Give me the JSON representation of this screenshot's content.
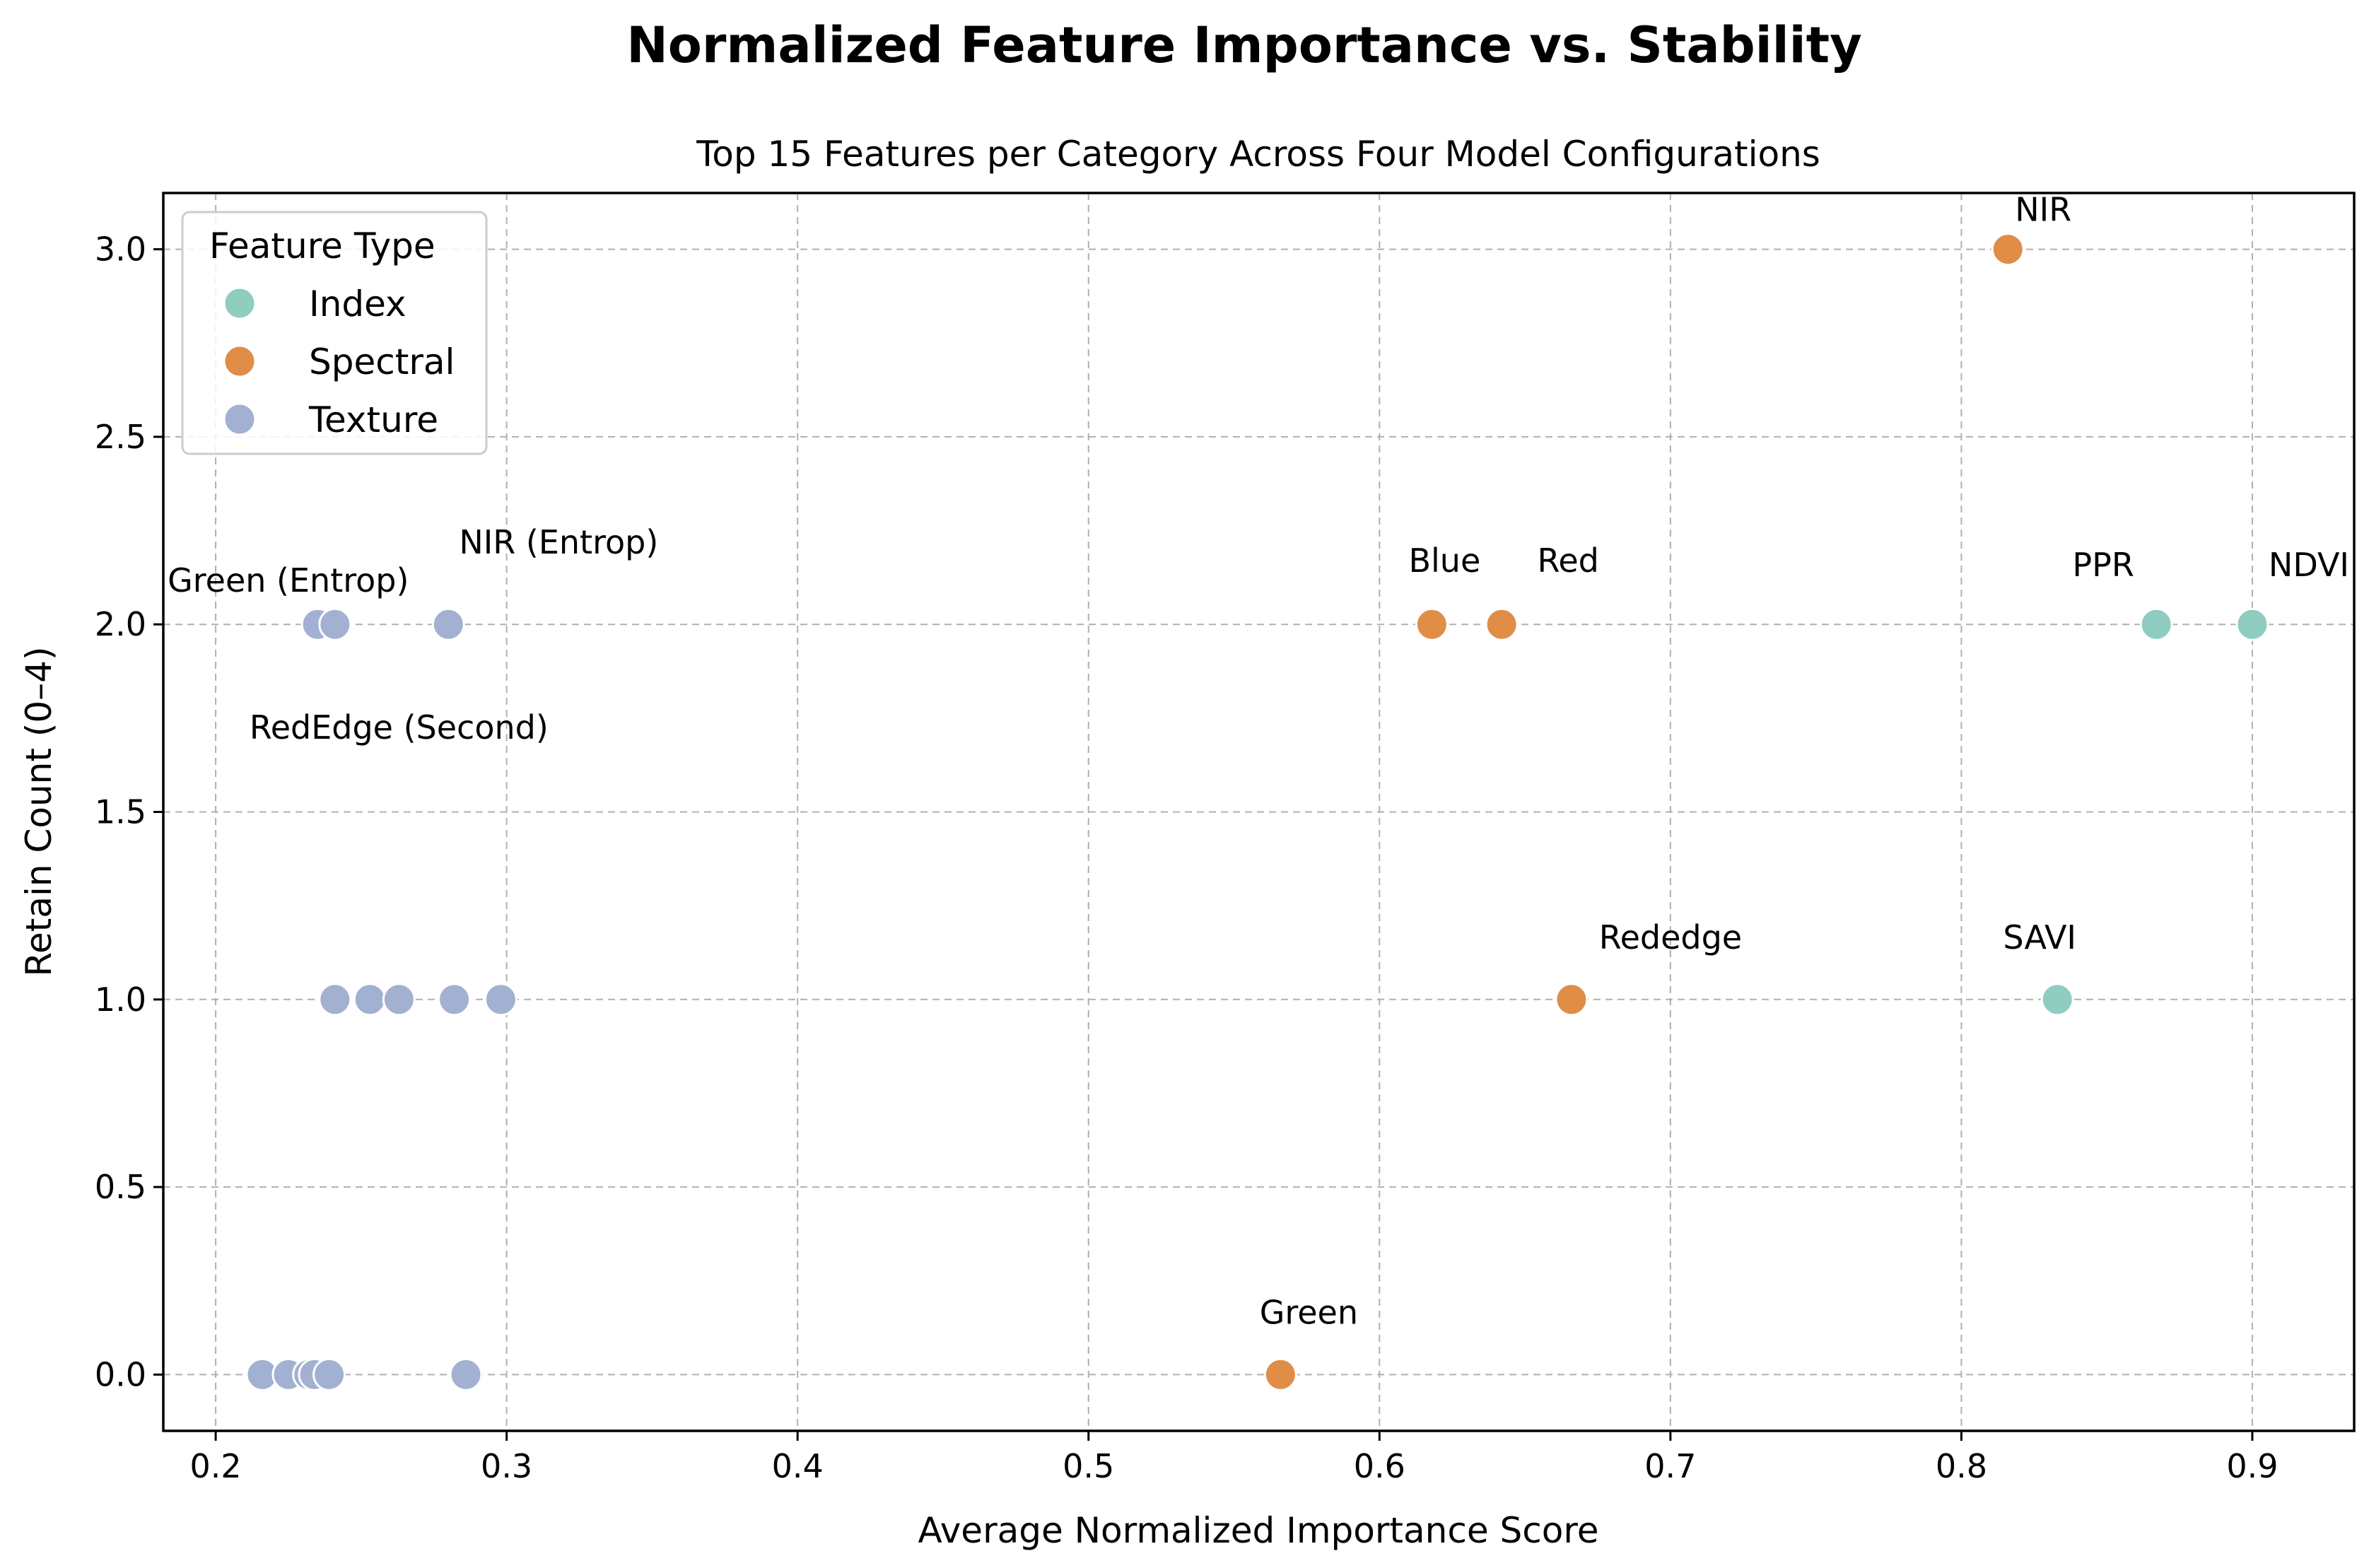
{
  "chart_data": {
    "type": "scatter",
    "title": "Normalized Feature Importance vs. Stability",
    "subtitle": "Top 15 Features per Category Across Four Model Configurations",
    "xlabel": "Average Normalized Importance Score",
    "ylabel": "Retain Count (0–4)",
    "xlim": [
      0.182,
      0.935
    ],
    "ylim": [
      -0.15,
      3.15
    ],
    "xticks": [
      0.2,
      0.3,
      0.4,
      0.5,
      0.6,
      0.7,
      0.8,
      0.9
    ],
    "xtick_labels": [
      "0.2",
      "0.3",
      "0.4",
      "0.5",
      "0.6",
      "0.7",
      "0.8",
      "0.9"
    ],
    "yticks": [
      0.0,
      0.5,
      1.0,
      1.5,
      2.0,
      2.5,
      3.0
    ],
    "ytick_labels": [
      "0.0",
      "0.5",
      "1.0",
      "1.5",
      "2.0",
      "2.5",
      "3.0"
    ],
    "grid": true,
    "legend": {
      "title": "Feature Type",
      "position": "top-left",
      "entries": [
        {
          "name": "Index",
          "color": "#8ecdc0"
        },
        {
          "name": "Spectral",
          "color": "#e08d48"
        },
        {
          "name": "Texture",
          "color": "#a2b1d2"
        }
      ]
    },
    "series": [
      {
        "name": "Index",
        "color": "#8ecdc0",
        "points": [
          {
            "x": 0.867,
            "y": 2.0
          },
          {
            "x": 0.9,
            "y": 2.0
          },
          {
            "x": 0.833,
            "y": 1.0
          }
        ]
      },
      {
        "name": "Spectral",
        "color": "#e08d48",
        "points": [
          {
            "x": 0.816,
            "y": 3.0
          },
          {
            "x": 0.618,
            "y": 2.0
          },
          {
            "x": 0.642,
            "y": 2.0
          },
          {
            "x": 0.666,
            "y": 1.0
          },
          {
            "x": 0.566,
            "y": 0.0
          }
        ]
      },
      {
        "name": "Texture",
        "color": "#a2b1d2",
        "points": [
          {
            "x": 0.235,
            "y": 2.0
          },
          {
            "x": 0.241,
            "y": 2.0
          },
          {
            "x": 0.28,
            "y": 2.0
          },
          {
            "x": 0.241,
            "y": 1.0
          },
          {
            "x": 0.253,
            "y": 1.0
          },
          {
            "x": 0.263,
            "y": 1.0
          },
          {
            "x": 0.282,
            "y": 1.0
          },
          {
            "x": 0.298,
            "y": 1.0
          },
          {
            "x": 0.216,
            "y": 0.0
          },
          {
            "x": 0.225,
            "y": 0.0
          },
          {
            "x": 0.232,
            "y": 0.0
          },
          {
            "x": 0.234,
            "y": 0.0
          },
          {
            "x": 0.239,
            "y": 0.0
          },
          {
            "x": 0.286,
            "y": 0.0
          }
        ]
      }
    ],
    "annotations": [
      {
        "text": "NIR",
        "x": 0.816,
        "y": 3.0
      },
      {
        "text": "PPR",
        "x": 0.867,
        "y": 2.0
      },
      {
        "text": "NDVI",
        "x": 0.9,
        "y": 2.0
      },
      {
        "text": "Blue",
        "x": 0.618,
        "y": 2.0
      },
      {
        "text": "Red",
        "x": 0.642,
        "y": 2.0
      },
      {
        "text": "Rededge",
        "x": 0.666,
        "y": 1.0
      },
      {
        "text": "SAVI",
        "x": 0.833,
        "y": 1.0
      },
      {
        "text": "Green",
        "x": 0.566,
        "y": 0.0
      },
      {
        "text": "Green (Entrop)",
        "x": 0.235,
        "y": 2.0
      },
      {
        "text": "NIR (Entrop)",
        "x": 0.28,
        "y": 2.0
      },
      {
        "text": "RedEdge (Second)",
        "x": 0.241,
        "y": 2.0
      }
    ]
  }
}
